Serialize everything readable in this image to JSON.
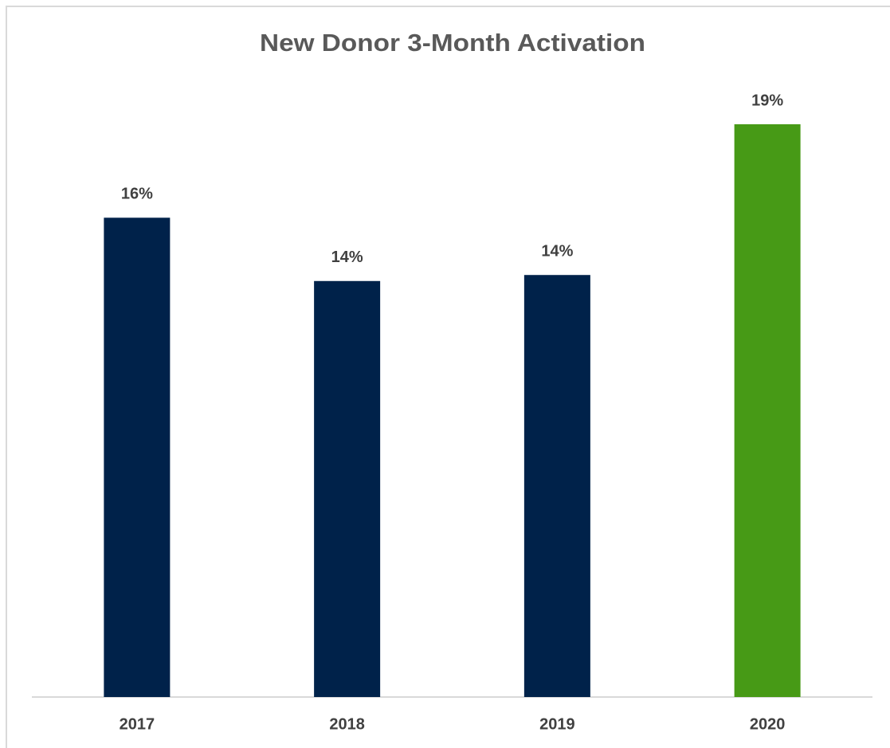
{
  "chart_data": {
    "type": "bar",
    "title": "New Donor 3-Month Activation",
    "categories": [
      "2017",
      "2018",
      "2019",
      "2020"
    ],
    "values": [
      15.9,
      13.8,
      14.0,
      19.0
    ],
    "value_labels": [
      "16%",
      "14%",
      "14%",
      "19%"
    ],
    "colors": [
      "#00224a",
      "#00224a",
      "#00224a",
      "#479a16"
    ]
  }
}
